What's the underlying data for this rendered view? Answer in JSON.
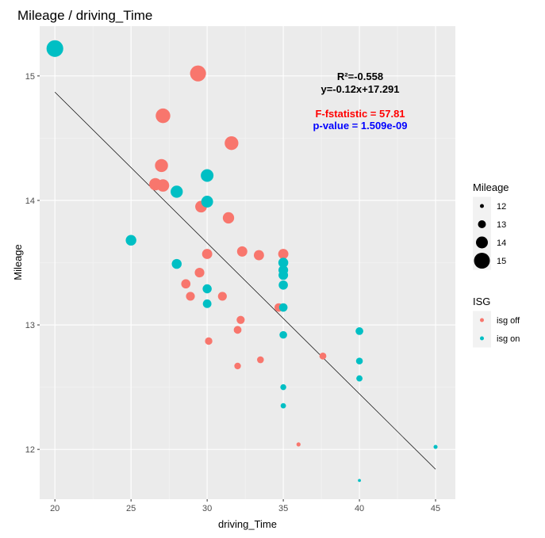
{
  "chart_data": {
    "type": "scatter",
    "title": "Mileage / driving_Time",
    "xlabel": "driving_Time",
    "ylabel": "Mileage",
    "xlim": [
      19.0,
      46.3
    ],
    "ylim": [
      11.6,
      15.4
    ],
    "xticks": [
      20,
      25,
      30,
      35,
      40,
      45
    ],
    "yticks": [
      12,
      13,
      14,
      15
    ],
    "xtick_labels": [
      "20",
      "25",
      "30",
      "35",
      "40",
      "45"
    ],
    "ytick_labels": [
      "12",
      "13",
      "14",
      "15"
    ],
    "grid": true,
    "colors": {
      "isg off": "#F8766D",
      "isg on": "#00BFC4",
      "line": "#000000",
      "panel": "#EBEBEB"
    },
    "trendline": {
      "x": [
        20,
        45
      ],
      "y": [
        14.87,
        11.84
      ]
    },
    "annotations": {
      "r2": "R²=-0.558",
      "equation": "y=-0.12x+17.291",
      "fstat": "F-fstatistic = 57.81",
      "pvalue": "p-value = 1.509e-09",
      "r2_color": "#000000",
      "fstat_color": "#FF0000",
      "pvalue_color": "#0000FF"
    },
    "series": [
      {
        "name": "isg off",
        "points": [
          {
            "x": 29.4,
            "y": 15.02
          },
          {
            "x": 27.1,
            "y": 14.68
          },
          {
            "x": 31.6,
            "y": 14.46
          },
          {
            "x": 27.0,
            "y": 14.28
          },
          {
            "x": 26.6,
            "y": 14.13
          },
          {
            "x": 27.1,
            "y": 14.12
          },
          {
            "x": 29.6,
            "y": 13.95
          },
          {
            "x": 31.4,
            "y": 13.86
          },
          {
            "x": 32.3,
            "y": 13.59
          },
          {
            "x": 30.0,
            "y": 13.57
          },
          {
            "x": 33.4,
            "y": 13.56
          },
          {
            "x": 35.0,
            "y": 13.57
          },
          {
            "x": 29.5,
            "y": 13.42
          },
          {
            "x": 28.6,
            "y": 13.33
          },
          {
            "x": 28.9,
            "y": 13.23
          },
          {
            "x": 31.0,
            "y": 13.23
          },
          {
            "x": 34.7,
            "y": 13.14
          },
          {
            "x": 32.2,
            "y": 13.04
          },
          {
            "x": 32.0,
            "y": 12.96
          },
          {
            "x": 30.1,
            "y": 12.87
          },
          {
            "x": 33.5,
            "y": 12.72
          },
          {
            "x": 32.0,
            "y": 12.67
          },
          {
            "x": 37.6,
            "y": 12.75
          },
          {
            "x": 36.0,
            "y": 12.04
          }
        ]
      },
      {
        "name": "isg on",
        "points": [
          {
            "x": 20.0,
            "y": 15.22
          },
          {
            "x": 30.0,
            "y": 14.2
          },
          {
            "x": 28.0,
            "y": 14.07
          },
          {
            "x": 30.0,
            "y": 13.99
          },
          {
            "x": 25.0,
            "y": 13.68
          },
          {
            "x": 28.0,
            "y": 13.49
          },
          {
            "x": 35.0,
            "y": 13.5
          },
          {
            "x": 35.0,
            "y": 13.44
          },
          {
            "x": 35.0,
            "y": 13.4
          },
          {
            "x": 35.0,
            "y": 13.32
          },
          {
            "x": 30.0,
            "y": 13.29
          },
          {
            "x": 30.0,
            "y": 13.17
          },
          {
            "x": 35.0,
            "y": 13.14
          },
          {
            "x": 40.0,
            "y": 12.95
          },
          {
            "x": 35.0,
            "y": 12.92
          },
          {
            "x": 40.0,
            "y": 12.71
          },
          {
            "x": 40.0,
            "y": 12.57
          },
          {
            "x": 35.0,
            "y": 12.5
          },
          {
            "x": 35.0,
            "y": 12.35
          },
          {
            "x": 45.0,
            "y": 12.02
          },
          {
            "x": 40.0,
            "y": 11.75
          }
        ]
      }
    ],
    "size_legend": {
      "title": "Mileage",
      "values": [
        12,
        13,
        14,
        15
      ],
      "labels": [
        "12",
        "13",
        "14",
        "15"
      ]
    },
    "color_legend": {
      "title": "ISG",
      "labels": [
        "isg off",
        "isg on"
      ]
    }
  }
}
